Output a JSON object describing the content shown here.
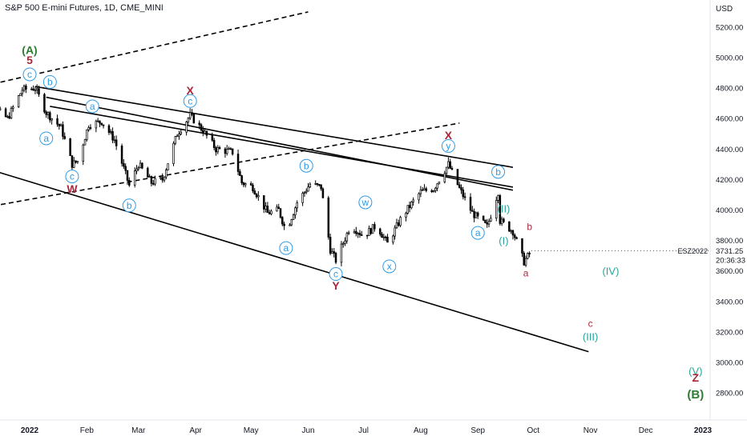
{
  "header": {
    "title": "S&P 500 E-mini Futures, 1D, CME_MINI"
  },
  "price_axis": {
    "unit": "USD",
    "ticks": [
      "5200.00",
      "5000.00",
      "4800.00",
      "4600.00",
      "4400.00",
      "4200.00",
      "4000.00",
      "3800.00",
      "3600.00",
      "3400.00",
      "3200.00",
      "3000.00",
      "2800.00"
    ]
  },
  "last_price": {
    "symbol": "ESZ2022",
    "price": "3731.25",
    "countdown": "20:36:33"
  },
  "colors": {
    "up": "#ffffff",
    "down": "#000000",
    "wave_blue": "#2e9be6",
    "wave_red": "#a8283b",
    "wave_teal": "#26a69a",
    "wave_green": "#2e7d32",
    "line": "#000000"
  },
  "chart_data": {
    "type": "candlestick",
    "title": "S&P 500 E-mini Futures, 1D, CME_MINI",
    "xlabel": "",
    "ylabel": "",
    "ylim": [
      2680,
      5330
    ],
    "log_scale": false,
    "grid": false,
    "x_tick_labels": [
      "2022",
      "Feb",
      "Mar",
      "Apr",
      "May",
      "Jun",
      "Jul",
      "Aug",
      "Sep",
      "Oct",
      "Nov",
      "Dec",
      "2023"
    ],
    "x_tick_dates": [
      "2022-01-01",
      "2022-02-01",
      "2022-03-01",
      "2022-04-01",
      "2022-05-01",
      "2022-06-01",
      "2022-07-01",
      "2022-08-01",
      "2022-09-01",
      "2022-10-01",
      "2022-11-01",
      "2022-12-01",
      "2023-01-01"
    ],
    "close_path": [
      [
        "2021-12-01",
        4560
      ],
      [
        "2021-12-10",
        4700
      ],
      [
        "2021-12-20",
        4600
      ],
      [
        "2021-12-28",
        4790
      ],
      [
        "2022-01-04",
        4800
      ],
      [
        "2022-01-10",
        4640
      ],
      [
        "2022-01-18",
        4540
      ],
      [
        "2022-01-24",
        4300
      ],
      [
        "2022-01-27",
        4320
      ],
      [
        "2022-02-02",
        4560
      ],
      [
        "2022-02-09",
        4580
      ],
      [
        "2022-02-16",
        4460
      ],
      [
        "2022-02-24",
        4160
      ],
      [
        "2022-03-01",
        4300
      ],
      [
        "2022-03-08",
        4180
      ],
      [
        "2022-03-14",
        4200
      ],
      [
        "2022-03-22",
        4500
      ],
      [
        "2022-03-29",
        4620
      ],
      [
        "2022-04-05",
        4520
      ],
      [
        "2022-04-12",
        4400
      ],
      [
        "2022-04-21",
        4380
      ],
      [
        "2022-04-26",
        4180
      ],
      [
        "2022-05-02",
        4150
      ],
      [
        "2022-05-10",
        3980
      ],
      [
        "2022-05-16",
        4000
      ],
      [
        "2022-05-20",
        3860
      ],
      [
        "2022-05-26",
        4050
      ],
      [
        "2022-06-02",
        4170
      ],
      [
        "2022-06-08",
        4150
      ],
      [
        "2022-06-13",
        3740
      ],
      [
        "2022-06-16",
        3670
      ],
      [
        "2022-06-24",
        3900
      ],
      [
        "2022-07-01",
        3830
      ],
      [
        "2022-07-08",
        3900
      ],
      [
        "2022-07-14",
        3780
      ],
      [
        "2022-07-22",
        3960
      ],
      [
        "2022-08-01",
        4120
      ],
      [
        "2022-08-08",
        4140
      ],
      [
        "2022-08-16",
        4300
      ],
      [
        "2022-08-22",
        4140
      ],
      [
        "2022-08-29",
        3980
      ],
      [
        "2022-09-06",
        3890
      ],
      [
        "2022-09-12",
        4120
      ],
      [
        "2022-09-13",
        3930
      ],
      [
        "2022-09-20",
        3860
      ],
      [
        "2022-09-26",
        3660
      ],
      [
        "2022-09-30",
        3731.25
      ]
    ],
    "trend_lines": [
      {
        "style": "solid",
        "from": [
          "2022-01-04",
          4810
        ],
        "to": [
          "2022-09-20",
          4280
        ]
      },
      {
        "style": "solid",
        "from": [
          "2022-01-10",
          4740
        ],
        "to": [
          "2022-09-20",
          4130
        ]
      },
      {
        "style": "solid",
        "from": [
          "2022-01-12",
          4680
        ],
        "to": [
          "2022-09-20",
          4150
        ]
      },
      {
        "style": "solid",
        "from": [
          "2021-12-01",
          4300
        ],
        "to": [
          "2022-10-31",
          3070
        ]
      },
      {
        "style": "dashed",
        "from": [
          "2021-11-25",
          4780
        ],
        "to": [
          "2022-06-01",
          5300
        ]
      },
      {
        "style": "dashed",
        "from": [
          "2021-11-25",
          3990
        ],
        "to": [
          "2022-08-22",
          4570
        ]
      }
    ],
    "wave_labels": [
      {
        "text": "(A)",
        "date": "2022-01-01",
        "price": 5050,
        "color": "wave_green",
        "circled": false,
        "size": 14
      },
      {
        "text": "5",
        "date": "2022-01-01",
        "price": 4985,
        "color": "wave_red",
        "circled": false,
        "size": 14
      },
      {
        "text": "c",
        "date": "2022-01-01",
        "price": 4890,
        "color": "wave_blue",
        "circled": true
      },
      {
        "text": "b",
        "date": "2022-01-12",
        "price": 4840,
        "color": "wave_blue",
        "circled": true
      },
      {
        "text": "a",
        "date": "2022-01-10",
        "price": 4470,
        "color": "wave_blue",
        "circled": true
      },
      {
        "text": "c",
        "date": "2022-01-24",
        "price": 4220,
        "color": "wave_blue",
        "circled": true
      },
      {
        "text": "W",
        "date": "2022-01-24",
        "price": 4140,
        "color": "wave_red",
        "circled": false,
        "size": 14
      },
      {
        "text": "a",
        "date": "2022-02-04",
        "price": 4680,
        "color": "wave_blue",
        "circled": true
      },
      {
        "text": "b",
        "date": "2022-02-24",
        "price": 4030,
        "color": "wave_blue",
        "circled": true
      },
      {
        "text": "X",
        "date": "2022-03-29",
        "price": 4785,
        "color": "wave_red",
        "circled": false,
        "size": 14
      },
      {
        "text": "c",
        "date": "2022-03-29",
        "price": 4715,
        "color": "wave_blue",
        "circled": true
      },
      {
        "text": "b",
        "date": "2022-05-31",
        "price": 4290,
        "color": "wave_blue",
        "circled": true
      },
      {
        "text": "a",
        "date": "2022-05-20",
        "price": 3750,
        "color": "wave_blue",
        "circled": true
      },
      {
        "text": "w",
        "date": "2022-07-02",
        "price": 4050,
        "color": "wave_blue",
        "circled": true
      },
      {
        "text": "c",
        "date": "2022-06-16",
        "price": 3580,
        "color": "wave_blue",
        "circled": true
      },
      {
        "text": "Y",
        "date": "2022-06-16",
        "price": 3505,
        "color": "wave_red",
        "circled": false,
        "size": 14
      },
      {
        "text": "x",
        "date": "2022-07-15",
        "price": 3630,
        "color": "wave_blue",
        "circled": true
      },
      {
        "text": "X",
        "date": "2022-08-16",
        "price": 4490,
        "color": "wave_red",
        "circled": false,
        "size": 14
      },
      {
        "text": "y",
        "date": "2022-08-16",
        "price": 4420,
        "color": "wave_blue",
        "circled": true
      },
      {
        "text": "b",
        "date": "2022-09-12",
        "price": 4250,
        "color": "wave_blue",
        "circled": true
      },
      {
        "text": "(II)",
        "date": "2022-09-15",
        "price": 4010,
        "color": "wave_teal",
        "circled": false,
        "size": 13
      },
      {
        "text": "a",
        "date": "2022-09-01",
        "price": 3850,
        "color": "wave_blue",
        "circled": true
      },
      {
        "text": "(I)",
        "date": "2022-09-15",
        "price": 3800,
        "color": "wave_teal",
        "circled": false,
        "size": 13
      },
      {
        "text": "b",
        "date": "2022-09-29",
        "price": 3895,
        "color": "wave_red",
        "circled": false,
        "size": 12
      },
      {
        "text": "a",
        "date": "2022-09-27",
        "price": 3590,
        "color": "wave_red",
        "circled": false,
        "size": 12
      },
      {
        "text": "(IV)",
        "date": "2022-11-12",
        "price": 3600,
        "color": "wave_teal",
        "circled": false,
        "size": 13
      },
      {
        "text": "c",
        "date": "2022-11-01",
        "price": 3260,
        "color": "wave_red",
        "circled": false,
        "size": 12
      },
      {
        "text": "(III)",
        "date": "2022-11-01",
        "price": 3170,
        "color": "wave_teal",
        "circled": false,
        "size": 13
      },
      {
        "text": "(V)",
        "date": "2022-12-28",
        "price": 2945,
        "color": "wave_teal",
        "circled": false,
        "size": 13
      },
      {
        "text": "Z",
        "date": "2022-12-28",
        "price": 2900,
        "color": "wave_red",
        "circled": false,
        "size": 14
      },
      {
        "text": "(B)",
        "date": "2022-12-28",
        "price": 2790,
        "color": "wave_green",
        "circled": false,
        "size": 15
      }
    ]
  }
}
